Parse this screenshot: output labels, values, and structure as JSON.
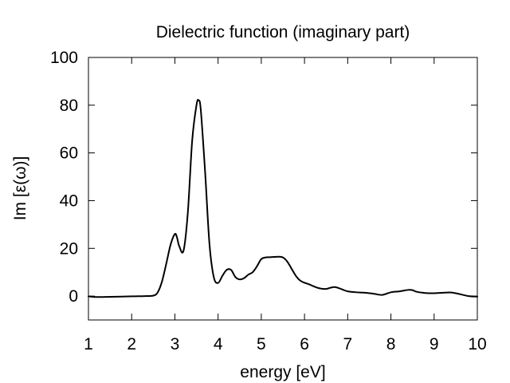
{
  "chart_data": {
    "type": "line",
    "title": "Dielectric function (imaginary part)",
    "xlabel": "energy [eV]",
    "ylabel": "Im [ε(ω)]",
    "xlim": [
      1,
      10
    ],
    "ylim": [
      -10,
      100
    ],
    "xticks": [
      1,
      2,
      3,
      4,
      5,
      6,
      7,
      8,
      9,
      10
    ],
    "yticks": [
      0,
      20,
      40,
      60,
      80,
      100
    ],
    "xtick_labels": [
      "1",
      "2",
      "3",
      "4",
      "5",
      "6",
      "7",
      "8",
      "9",
      "10"
    ],
    "ytick_labels": [
      "0",
      "20",
      "40",
      "60",
      "80",
      "100"
    ],
    "grid": false,
    "legend": "none",
    "series": [
      {
        "color": "#000000",
        "x": [
          1.0,
          1.2,
          1.5,
          2.0,
          2.3,
          2.5,
          2.6,
          2.7,
          2.8,
          2.9,
          3.0,
          3.05,
          3.1,
          3.2,
          3.3,
          3.4,
          3.5,
          3.55,
          3.6,
          3.7,
          3.8,
          3.9,
          4.0,
          4.1,
          4.2,
          4.3,
          4.4,
          4.5,
          4.6,
          4.7,
          4.8,
          4.9,
          5.0,
          5.1,
          5.2,
          5.4,
          5.5,
          5.6,
          5.7,
          5.8,
          5.9,
          6.0,
          6.1,
          6.2,
          6.3,
          6.4,
          6.5,
          6.6,
          6.7,
          6.8,
          6.9,
          7.0,
          7.2,
          7.4,
          7.6,
          7.8,
          8.0,
          8.2,
          8.4,
          8.5,
          8.6,
          8.8,
          9.0,
          9.2,
          9.4,
          9.6,
          9.8,
          10.0
        ],
        "values": [
          -0.1,
          -0.4,
          -0.3,
          -0.1,
          0.0,
          0.2,
          1.5,
          6.0,
          13.5,
          21.5,
          26.0,
          24.5,
          21.0,
          19.0,
          35.0,
          65.0,
          80.0,
          82.0,
          78.0,
          52.0,
          22.0,
          8.0,
          5.5,
          8.5,
          11.0,
          11.0,
          8.0,
          7.0,
          7.5,
          9.0,
          10.0,
          12.5,
          15.5,
          16.2,
          16.3,
          16.5,
          16.2,
          14.5,
          11.5,
          8.5,
          6.5,
          5.6,
          5.0,
          4.2,
          3.5,
          3.1,
          3.0,
          3.5,
          3.8,
          3.3,
          2.6,
          2.0,
          1.6,
          1.4,
          1.0,
          0.5,
          1.6,
          2.0,
          2.6,
          2.5,
          1.8,
          1.3,
          1.2,
          1.4,
          1.5,
          0.8,
          0.0,
          -0.2
        ]
      }
    ]
  }
}
